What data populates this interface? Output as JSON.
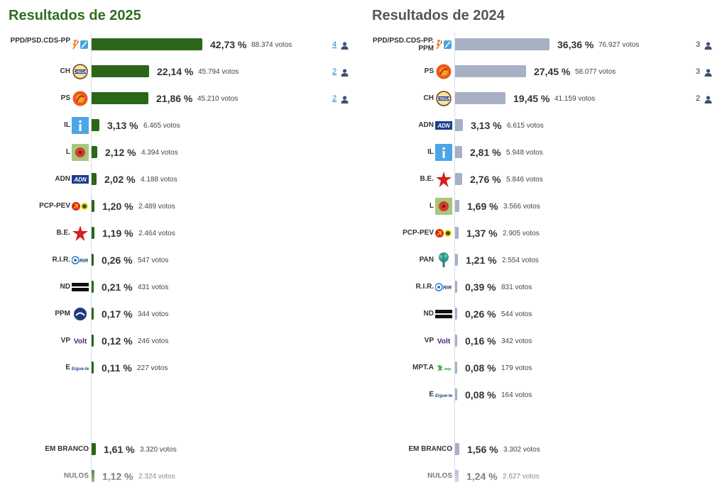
{
  "colors": {
    "bar_2025": "#2b6619",
    "bar_2024": "#a8b0c6",
    "title_2025": "#2f6e1f",
    "title_2024": "#555555"
  },
  "chart_data": [
    {
      "type": "bar",
      "title": "Resultados de 2025",
      "series": [
        {
          "values": [
            42.73,
            22.14,
            21.86,
            3.13,
            2.12,
            2.02,
            1.2,
            1.19,
            0.26,
            0.21,
            0.17,
            0.12,
            0.11,
            1.61,
            1.12
          ]
        }
      ],
      "rows": [
        {
          "party": "PPD/PSD.CDS-PP",
          "logo": "ad-logo",
          "pct": "42,73 %",
          "votes": "88.374 votos",
          "value": 42.73,
          "seats": "4"
        },
        {
          "party": "CH",
          "logo": "chega-logo",
          "pct": "22,14 %",
          "votes": "45.794 votos",
          "value": 22.14,
          "seats": "2"
        },
        {
          "party": "PS",
          "logo": "ps-logo",
          "pct": "21,86 %",
          "votes": "45.210 votos",
          "value": 21.86,
          "seats": "2"
        },
        {
          "party": "IL",
          "logo": "il-logo",
          "pct": "3,13 %",
          "votes": "6.465 votos",
          "value": 3.13
        },
        {
          "party": "L",
          "logo": "livre-logo",
          "pct": "2,12 %",
          "votes": "4.394 votos",
          "value": 2.12
        },
        {
          "party": "ADN",
          "logo": "adn-logo",
          "pct": "2,02 %",
          "votes": "4.188 votos",
          "value": 2.02
        },
        {
          "party": "PCP-PEV",
          "logo": "cdu-logo",
          "pct": "1,20 %",
          "votes": "2.489 votos",
          "value": 1.2
        },
        {
          "party": "B.E.",
          "logo": "be-logo",
          "pct": "1,19 %",
          "votes": "2.464 votos",
          "value": 1.19
        },
        {
          "party": "R.I.R.",
          "logo": "rir-logo",
          "pct": "0,26 %",
          "votes": "547 votos",
          "value": 0.26
        },
        {
          "party": "ND",
          "logo": "nd-logo",
          "pct": "0,21 %",
          "votes": "431 votos",
          "value": 0.21
        },
        {
          "party": "PPM",
          "logo": "ppm-logo",
          "pct": "0,17 %",
          "votes": "344 votos",
          "value": 0.17
        },
        {
          "party": "VP",
          "logo": "volt-logo",
          "pct": "0,12 %",
          "votes": "246 votos",
          "value": 0.12
        },
        {
          "party": "E",
          "logo": "ergue-te-logo",
          "pct": "0,11 %",
          "votes": "227 votos",
          "value": 0.11
        },
        {
          "party": "EM BRANCO",
          "pct": "1,61 %",
          "votes": "3.320 votos",
          "value": 1.61
        },
        {
          "party": "NULOS",
          "pct": "1,12 %",
          "votes": "2.324 votos",
          "value": 1.12
        }
      ]
    },
    {
      "type": "bar",
      "title": "Resultados de 2024",
      "series": [
        {
          "values": [
            36.36,
            27.45,
            19.45,
            3.13,
            2.81,
            2.76,
            1.69,
            1.37,
            1.21,
            0.39,
            0.26,
            0.16,
            0.08,
            0.08,
            1.56,
            1.24
          ]
        }
      ],
      "rows": [
        {
          "party": "PPD/PSD.CDS-PP.PPM",
          "logo": "ad-logo",
          "pct": "36,36 %",
          "votes": "76.927 votos",
          "value": 36.36,
          "seats": "3"
        },
        {
          "party": "PS",
          "logo": "ps-logo",
          "pct": "27,45 %",
          "votes": "58.077 votos",
          "value": 27.45,
          "seats": "3"
        },
        {
          "party": "CH",
          "logo": "chega-logo",
          "pct": "19,45 %",
          "votes": "41.159 votos",
          "value": 19.45,
          "seats": "2"
        },
        {
          "party": "ADN",
          "logo": "adn-logo",
          "pct": "3,13 %",
          "votes": "6.615 votos",
          "value": 3.13
        },
        {
          "party": "IL",
          "logo": "il-logo",
          "pct": "2,81 %",
          "votes": "5.948 votos",
          "value": 2.81
        },
        {
          "party": "B.E.",
          "logo": "be-logo",
          "pct": "2,76 %",
          "votes": "5.846 votos",
          "value": 2.76
        },
        {
          "party": "L",
          "logo": "livre-logo",
          "pct": "1,69 %",
          "votes": "3.566 votos",
          "value": 1.69
        },
        {
          "party": "PCP-PEV",
          "logo": "cdu-logo",
          "pct": "1,37 %",
          "votes": "2.905 votos",
          "value": 1.37
        },
        {
          "party": "PAN",
          "logo": "pan-logo",
          "pct": "1,21 %",
          "votes": "2.554 votos",
          "value": 1.21
        },
        {
          "party": "R.I.R.",
          "logo": "rir-logo",
          "pct": "0,39 %",
          "votes": "831 votos",
          "value": 0.39
        },
        {
          "party": "ND",
          "logo": "nd-logo",
          "pct": "0,26 %",
          "votes": "544 votos",
          "value": 0.26
        },
        {
          "party": "VP",
          "logo": "volt-logo",
          "pct": "0,16 %",
          "votes": "342 votos",
          "value": 0.16
        },
        {
          "party": "MPT.A",
          "logo": "mpt-logo",
          "pct": "0,08 %",
          "votes": "179 votos",
          "value": 0.08
        },
        {
          "party": "E",
          "logo": "ergue-te-logo",
          "pct": "0,08 %",
          "votes": "164 votos",
          "value": 0.08
        },
        {
          "party": "EM BRANCO",
          "pct": "1,56 %",
          "votes": "3.302 votos",
          "value": 1.56
        },
        {
          "party": "NULOS",
          "pct": "1,24 %",
          "votes": "2.627 votos",
          "value": 1.24
        }
      ]
    }
  ]
}
